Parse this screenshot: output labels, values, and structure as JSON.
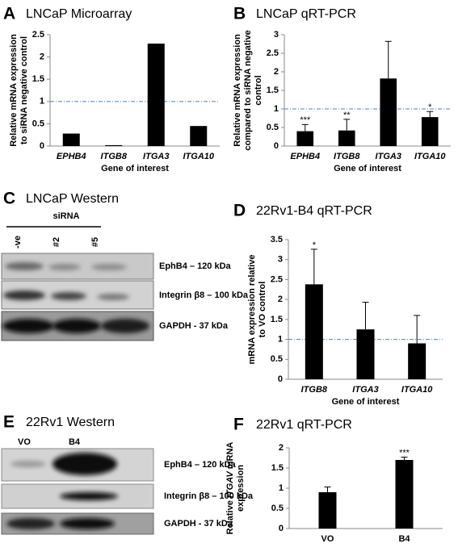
{
  "chart_data": [
    {
      "type": "bar",
      "panel": "A",
      "title": "LNCaP Microarray",
      "categories": [
        "EPHB4",
        "ITGB8",
        "ITGA3",
        "ITGA10"
      ],
      "category_style": "italic",
      "values": [
        0.28,
        0.02,
        2.3,
        0.45
      ],
      "color": "#000000",
      "ylabel": [
        "Relative mRNA expression",
        "to siRNA negative control"
      ],
      "xlabel": "Gene of interest",
      "ylim": [
        0,
        2.5
      ],
      "yticks": [
        0,
        0.5,
        1,
        1.5,
        2,
        2.5
      ],
      "reference_line": {
        "value": 1,
        "color": "#4f81bd"
      }
    },
    {
      "type": "bar",
      "panel": "B",
      "title": "LNCaP qRT-PCR",
      "categories": [
        "EPHB4",
        "ITGB8",
        "ITGA3",
        "ITGA10"
      ],
      "category_style": "italic",
      "values": [
        0.4,
        0.42,
        1.82,
        0.78
      ],
      "errors": [
        0.18,
        0.3,
        1.0,
        0.15
      ],
      "significance": [
        "***",
        "**",
        null,
        "*"
      ],
      "color": "#000000",
      "ylabel": [
        "Relative mRNA expression",
        "compared to siRNA negative",
        "control"
      ],
      "xlabel": "Gene of interest",
      "ylim": [
        0,
        3
      ],
      "yticks": [
        0,
        0.5,
        1,
        1.5,
        2,
        2.5,
        3
      ],
      "reference_line": {
        "value": 1,
        "color": "#4f81bd"
      }
    },
    {
      "type": "bar",
      "panel": "D",
      "title": "22Rv1-B4 qRT-PCR",
      "categories": [
        "ITGB8",
        "ITGA3",
        "ITGA10"
      ],
      "category_style": "italic",
      "values": [
        2.38,
        1.25,
        0.9
      ],
      "errors": [
        0.88,
        0.68,
        0.7
      ],
      "significance": [
        "*",
        null,
        null
      ],
      "color": "#000000",
      "ylabel": [
        "mRNA expression  relative",
        "to VO control"
      ],
      "xlabel": "Gene of interest",
      "ylim": [
        0,
        3.5
      ],
      "yticks": [
        0,
        0.5,
        1,
        1.5,
        2,
        2.5,
        3,
        3.5
      ],
      "reference_line": {
        "value": 1,
        "color": "#4f81bd"
      }
    },
    {
      "type": "bar",
      "panel": "F",
      "title": "22Rv1 qRT-PCR",
      "categories": [
        "VO",
        "B4"
      ],
      "category_style": "normal",
      "values": [
        0.9,
        1.7
      ],
      "errors": [
        0.13,
        0.07
      ],
      "significance": [
        null,
        "***"
      ],
      "color": "#000000",
      "ylabel": [
        [
          {
            "text": "Relative "
          },
          {
            "text": "ITGAV",
            "italic": true
          },
          {
            "text": " mRNA"
          }
        ],
        "expression"
      ],
      "ylim": [
        0,
        2
      ],
      "yticks": [
        0,
        0.5,
        1,
        1.5,
        2
      ]
    }
  ],
  "blots": [
    {
      "panel": "C",
      "title": "LNCaP Western",
      "group": "siRNA",
      "lanes": [
        "-ve",
        "#2",
        "#5"
      ],
      "bands": [
        "EphB4 – 120 kDa",
        "Integrin β8 – 100 kDa",
        "GAPDH - 37 kDa"
      ]
    },
    {
      "panel": "E",
      "title": "22Rv1 Western",
      "lanes": [
        "VO",
        "B4"
      ],
      "bands": [
        "EphB4 – 120 kDa",
        "Integrin β8 – 100 kDa",
        "GAPDH - 37 kDa"
      ]
    }
  ]
}
